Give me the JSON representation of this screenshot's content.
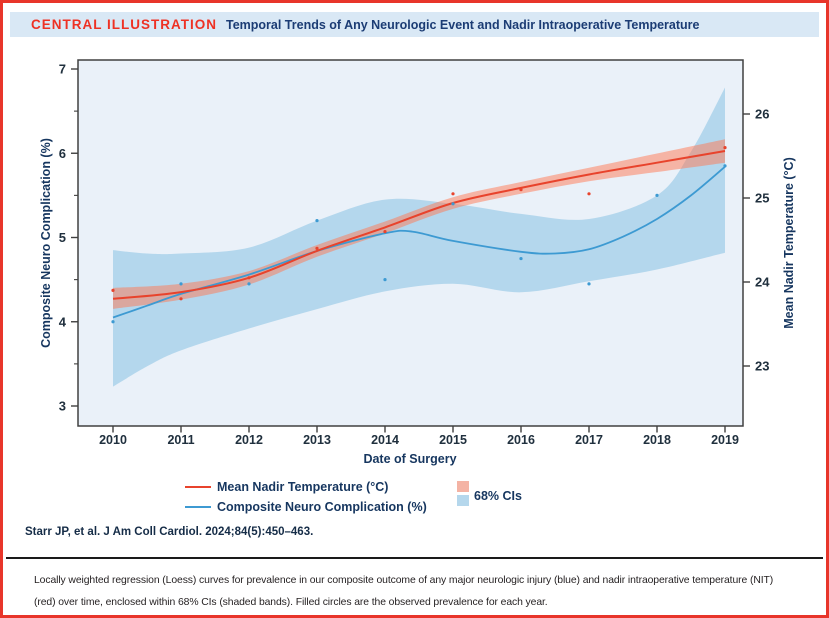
{
  "header": {
    "kicker": "CENTRAL ILLUSTRATION",
    "title": "Temporal Trends of Any Neurologic Event and Nadir Intraoperative Temperature"
  },
  "citation": "Starr JP, et al. J Am Coll Cardiol. 2024;84(5):450–463.",
  "caption": {
    "line1": "Locally weighted regression (Loess) curves for prevalence in our composite outcome of any major neurologic injury (blue) and nadir intraoperative temperature (NIT)",
    "line2": "(red) over time, enclosed within 68% CIs (shaded bands). Filled circles are the observed prevalence for each year."
  },
  "legend": {
    "items": [
      {
        "label": "Mean Nadir Temperature (°C)",
        "color": "#e8432c"
      },
      {
        "label": "Composite Neuro Complication (%)",
        "color": "#3d9ad2"
      }
    ],
    "ci_label": "68% CIs",
    "ci_colors": [
      "#f4b3a4",
      "#b5d7ec"
    ]
  },
  "colors": {
    "frame_border": "#e8352a",
    "header_bg": "#d9e8f5",
    "kicker_red": "#ee3124",
    "navy": "#16365f",
    "plot_bg": "#eaf1f9",
    "axis_stroke": "#404040",
    "tick_text": "#20303e",
    "red_line": "#e8432c",
    "red_band_rgba": "rgba(255,119,82,0.5)",
    "blue_line": "#3d9ad2",
    "blue_band_rgba": "rgba(116,183,221,0.45)"
  },
  "chart_data": {
    "type": "line",
    "title": "Temporal Trends of Any Neurologic Event and Nadir Intraoperative Temperature",
    "xlabel": "Date of Surgery",
    "x_ticks": [
      2010,
      2011,
      2012,
      2013,
      2014,
      2015,
      2016,
      2017,
      2018,
      2019
    ],
    "left_axis": {
      "label": "Composite Neuro Complication (%)",
      "ticks": [
        3,
        4,
        5,
        6,
        7
      ],
      "minor_ticks": [
        3.5,
        4.5,
        5.5,
        6.5
      ],
      "range": [
        2.76,
        7.11
      ]
    },
    "right_axis": {
      "label": "Mean Nadir Temperature (°C)",
      "ticks": [
        23,
        24,
        25,
        26
      ],
      "range": [
        22.29,
        26.64
      ]
    },
    "legend_position": "bottom",
    "grid": false,
    "series": [
      {
        "name": "Mean Nadir Temperature (°C)",
        "axis": "right",
        "color": "#e8432c",
        "band_color": "rgba(255,119,82,0.5)",
        "observed": [
          23.9,
          23.8,
          24.05,
          24.4,
          24.6,
          25.05,
          25.1,
          25.05,
          null,
          25.6
        ],
        "loess": [
          [
            2010,
            23.8
          ],
          [
            2011,
            23.88
          ],
          [
            2012,
            24.05
          ],
          [
            2013,
            24.37
          ],
          [
            2014,
            24.65
          ],
          [
            2015,
            24.94
          ],
          [
            2016,
            25.12
          ],
          [
            2017,
            25.28
          ],
          [
            2018,
            25.42
          ],
          [
            2019,
            25.56
          ]
        ],
        "ci_upper": [
          [
            2010,
            23.93
          ],
          [
            2011,
            23.98
          ],
          [
            2012,
            24.13
          ],
          [
            2013,
            24.44
          ],
          [
            2014,
            24.72
          ],
          [
            2015,
            25.01
          ],
          [
            2016,
            25.19
          ],
          [
            2017,
            25.36
          ],
          [
            2018,
            25.53
          ],
          [
            2019,
            25.7
          ]
        ],
        "ci_lower": [
          [
            2010,
            23.68
          ],
          [
            2011,
            23.79
          ],
          [
            2012,
            23.97
          ],
          [
            2013,
            24.3
          ],
          [
            2014,
            24.58
          ],
          [
            2015,
            24.87
          ],
          [
            2016,
            25.05
          ],
          [
            2017,
            25.2
          ],
          [
            2018,
            25.31
          ],
          [
            2019,
            25.42
          ]
        ]
      },
      {
        "name": "Composite Neuro Complication (%)",
        "axis": "left",
        "color": "#3d9ad2",
        "band_color": "rgba(116,183,221,0.45)",
        "observed": [
          4.0,
          4.45,
          4.45,
          5.2,
          4.5,
          5.4,
          4.75,
          4.45,
          5.5,
          5.85
        ],
        "loess": [
          [
            2010,
            4.05
          ],
          [
            2010.5,
            4.19
          ],
          [
            2011,
            4.33
          ],
          [
            2012,
            4.56
          ],
          [
            2013,
            4.84
          ],
          [
            2014,
            5.05
          ],
          [
            2014.4,
            5.07
          ],
          [
            2015,
            4.96
          ],
          [
            2016,
            4.83
          ],
          [
            2016.5,
            4.81
          ],
          [
            2017,
            4.86
          ],
          [
            2017.5,
            5.01
          ],
          [
            2018,
            5.22
          ],
          [
            2018.5,
            5.5
          ],
          [
            2019,
            5.84
          ]
        ],
        "ci_upper": [
          [
            2010,
            4.85
          ],
          [
            2010.5,
            4.81
          ],
          [
            2011,
            4.81
          ],
          [
            2012,
            4.88
          ],
          [
            2013,
            5.2
          ],
          [
            2014,
            5.45
          ],
          [
            2015,
            5.4
          ],
          [
            2016,
            5.28
          ],
          [
            2017,
            5.22
          ],
          [
            2018,
            5.5
          ],
          [
            2018.5,
            6.02
          ],
          [
            2019,
            6.78
          ]
        ],
        "ci_lower": [
          [
            2010,
            3.23
          ],
          [
            2010.5,
            3.47
          ],
          [
            2011,
            3.66
          ],
          [
            2012,
            3.92
          ],
          [
            2013,
            4.15
          ],
          [
            2014,
            4.36
          ],
          [
            2015,
            4.45
          ],
          [
            2016,
            4.35
          ],
          [
            2017,
            4.48
          ],
          [
            2018,
            4.62
          ],
          [
            2019,
            4.82
          ]
        ]
      }
    ]
  }
}
